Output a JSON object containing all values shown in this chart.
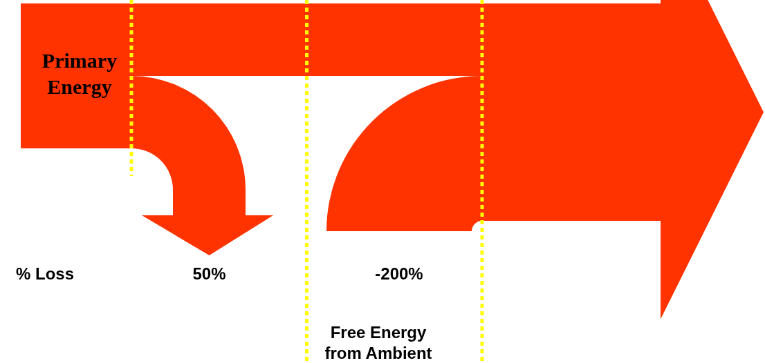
{
  "chart_data": {
    "type": "other",
    "categories": [
      null,
      "Free Energy\nfrom Ambient"
    ],
    "values": [
      50,
      -200
    ],
    "value_labels": [
      "50%",
      "-200%"
    ],
    "ylabel": "% Loss",
    "annotations": [
      "Primary\nEnergy"
    ],
    "color": "#ff3300"
  }
}
